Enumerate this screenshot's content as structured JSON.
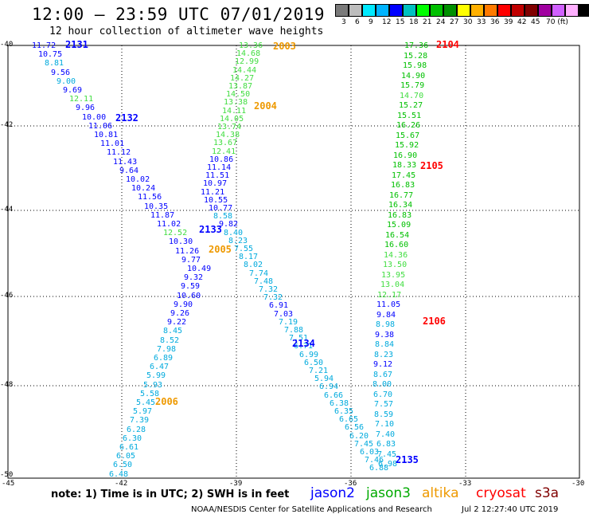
{
  "title": "12:00 – 23:59 UTC 07/01/2019",
  "subtitle": "12 hour collection of altimeter wave heights",
  "colorbar": {
    "colors": [
      "#7a7a7a",
      "#bdbdbd",
      "#00eaff",
      "#00b4ff",
      "#0000ff",
      "#00c0c0",
      "#00ff00",
      "#00c000",
      "#009000",
      "#ffff00",
      "#ffb000",
      "#ff7a00",
      "#ff0000",
      "#c00000",
      "#800000",
      "#a000a0",
      "#d060ff",
      "#ffb0ff",
      "#000000"
    ],
    "labels": [
      "3",
      "6",
      "9",
      "12",
      "15",
      "18",
      "21",
      "24",
      "27",
      "30",
      "33",
      "36",
      "39",
      "42",
      "45",
      "70 (ft)"
    ]
  },
  "axes": {
    "lat_labels": [
      "-40",
      "-42",
      "-44",
      "-46",
      "-48",
      "-50"
    ],
    "lon_labels": [
      "-45",
      "-42",
      "-39",
      "-36",
      "-33",
      "-30"
    ]
  },
  "tracks": [
    {
      "sat": "jason2",
      "pass": "2131",
      "color": "#0000ff",
      "label_color": "#0000ff",
      "points": [
        [
          0,
          "11.72",
          "#0000ff"
        ],
        [
          1,
          "10.75",
          "#0000ff"
        ],
        [
          2,
          "8.81",
          "#00aadd"
        ],
        [
          3,
          "9.56",
          "#0000ff"
        ],
        [
          4,
          "9.00",
          "#00aadd"
        ],
        [
          5,
          "9.69",
          "#0000ff"
        ],
        [
          6,
          "12.11",
          "#40dd40"
        ],
        [
          7,
          "9.96",
          "#0000ff"
        ],
        [
          8,
          "10.00",
          "#0000ff"
        ],
        [
          9,
          "11.06",
          "#0000ff"
        ],
        [
          10,
          "10.81",
          "#0000ff"
        ],
        [
          11,
          "11.01",
          "#0000ff"
        ],
        [
          12,
          "11.12",
          "#0000ff"
        ],
        [
          13,
          "11.43",
          "#0000ff"
        ],
        [
          14,
          "9.64",
          "#0000ff"
        ],
        [
          15,
          "10.02",
          "#0000ff"
        ],
        [
          16,
          "10.24",
          "#0000ff"
        ],
        [
          17,
          "11.56",
          "#0000ff"
        ],
        [
          18,
          "10.35",
          "#0000ff"
        ],
        [
          19,
          "11.87",
          "#0000ff"
        ],
        [
          20,
          "11.02",
          "#0000ff"
        ],
        [
          21,
          "12.52",
          "#40dd40"
        ],
        [
          22,
          "10.30",
          "#0000ff"
        ],
        [
          23,
          "11.26",
          "#0000ff"
        ],
        [
          24,
          "9.77",
          "#0000ff"
        ],
        [
          25,
          "10.49",
          "#0000ff"
        ],
        [
          26,
          "9.32",
          "#0000ff"
        ],
        [
          27,
          "9.59",
          "#0000ff"
        ],
        [
          28,
          "10.60",
          "#0000ff"
        ],
        [
          29,
          "9.90",
          "#0000ff"
        ],
        [
          30,
          "9.26",
          "#0000ff"
        ],
        [
          31,
          "9.22",
          "#0000ff"
        ]
      ]
    },
    {
      "sat": "jason2",
      "pass": "2132",
      "color": "#0000ff"
    },
    {
      "sat": "jason2",
      "pass": "2133",
      "color": "#0000ff"
    },
    {
      "sat": "jason2",
      "pass": "2134",
      "color": "#0000ff"
    },
    {
      "sat": "jason2",
      "pass": "2135",
      "color": "#0000ff"
    },
    {
      "sat": "altika",
      "pass": "2003",
      "color": "#ee9900"
    },
    {
      "sat": "altika",
      "pass": "2004",
      "color": "#ee9900"
    },
    {
      "sat": "altika",
      "pass": "2005",
      "color": "#ee9900"
    },
    {
      "sat": "altika",
      "pass": "2006",
      "color": "#ee9900"
    },
    {
      "sat": "cryosat",
      "pass": "2104",
      "color": "#ff0000"
    },
    {
      "sat": "cryosat",
      "pass": "2105",
      "color": "#ff0000"
    },
    {
      "sat": "cryosat",
      "pass": "2106",
      "color": "#ff0000"
    }
  ],
  "labels": {
    "trackA": [
      "11.72",
      "10.75",
      "8.81",
      "9.56",
      "9.00",
      "9.69",
      "12.11",
      "9.96",
      "10.00",
      "11.06",
      "10.81",
      "11.01",
      "11.12",
      "11.43",
      "9.64",
      "10.02",
      "10.24",
      "11.56",
      "10.35",
      "11.87",
      "11.02",
      "12.52",
      "10.30",
      "11.26",
      "9.77",
      "10.49",
      "9.32",
      "9.59",
      "10.60",
      "9.90",
      "9.26",
      "9.22",
      "8.45",
      "8.52",
      "7.98",
      "6.89",
      "6.47",
      "5.99",
      "5.93",
      "5.58",
      "5.45",
      "5.97",
      "7.39",
      "6.28",
      "6.30",
      "6.61",
      "6.05",
      "6.50",
      "6.48"
    ],
    "trackA_colors": [
      "#0000ff",
      "#0000ff",
      "#00aadd",
      "#0000ff",
      "#00aadd",
      "#0000ff",
      "#40dd40",
      "#0000ff",
      "#0000ff",
      "#0000ff",
      "#0000ff",
      "#0000ff",
      "#0000ff",
      "#0000ff",
      "#0000ff",
      "#0000ff",
      "#0000ff",
      "#0000ff",
      "#0000ff",
      "#0000ff",
      "#0000ff",
      "#40dd40",
      "#0000ff",
      "#0000ff",
      "#0000ff",
      "#0000ff",
      "#0000ff",
      "#0000ff",
      "#0000ff",
      "#0000ff",
      "#0000ff",
      "#0000ff",
      "#00aadd",
      "#00aadd",
      "#00aadd",
      "#00aadd",
      "#00aadd",
      "#00aadd",
      "#00aadd",
      "#00aadd",
      "#00aadd",
      "#00aadd",
      "#00aadd",
      "#00aadd",
      "#00aadd",
      "#00aadd",
      "#00aadd",
      "#00aadd",
      "#00aadd"
    ],
    "trackB": [
      "13.36",
      "14.68",
      "12.99",
      "14.44",
      "14.27",
      "13.87",
      "14.50",
      "13.38",
      "14.11",
      "14.05",
      "13.74",
      "14.38",
      "13.67",
      "12.41",
      "10.86",
      "11.14",
      "11.51",
      "10.97",
      "11.21",
      "10.55",
      "10.77",
      "8.58",
      "9.82",
      "8.40",
      "8.23",
      "7.55",
      "8.17",
      "8.02",
      "7.74",
      "7.48",
      "7.32",
      "7.32",
      "6.91",
      "7.03",
      "7.19",
      "7.88",
      "7.51",
      "6.71",
      "6.99",
      "6.50",
      "7.21",
      "5.94",
      "6.94",
      "6.66",
      "6.38",
      "6.35",
      "6.65",
      "6.56",
      "6.20",
      "7.45",
      "6.03",
      "7.46",
      "6.88"
    ],
    "trackB_colors": [
      "#40dd40",
      "#40dd40",
      "#40dd40",
      "#40dd40",
      "#40dd40",
      "#40dd40",
      "#40dd40",
      "#40dd40",
      "#40dd40",
      "#40dd40",
      "#40dd40",
      "#40dd40",
      "#40dd40",
      "#40dd40",
      "#0000ff",
      "#0000ff",
      "#0000ff",
      "#0000ff",
      "#0000ff",
      "#0000ff",
      "#0000ff",
      "#00aadd",
      "#0000ff",
      "#00aadd",
      "#00aadd",
      "#00aadd",
      "#00aadd",
      "#00aadd",
      "#00aadd",
      "#00aadd",
      "#00aadd",
      "#00aadd",
      "#0000ff",
      "#0000ff",
      "#00aadd",
      "#00aadd",
      "#00aadd",
      "#00aadd",
      "#00aadd",
      "#00aadd",
      "#00aadd",
      "#00aadd",
      "#00aadd",
      "#00aadd",
      "#00aadd",
      "#00aadd",
      "#00aadd",
      "#00aadd",
      "#00aadd",
      "#00aadd",
      "#00aadd",
      "#00aadd",
      "#00aadd"
    ],
    "trackC": [
      "17.36",
      "15.28",
      "15.98",
      "14.90",
      "15.79",
      "14.70",
      "15.27",
      "15.51",
      "16.26",
      "15.67",
      "15.92",
      "16.90",
      "18.33",
      "17.45",
      "16.83",
      "16.77",
      "16.34",
      "16.83",
      "15.09",
      "16.54",
      "16.60",
      "14.36",
      "13.50",
      "13.95",
      "13.04",
      "12.17",
      "11.05",
      "9.84",
      "8.98",
      "9.38",
      "8.84",
      "8.23",
      "9.12",
      "8.67",
      "8.00",
      "6.70",
      "7.57",
      "8.59",
      "7.10",
      "7.40",
      "6.83",
      "7.45",
      "6.98"
    ],
    "trackC_colors": [
      "#00c000",
      "#00c000",
      "#00c000",
      "#00c000",
      "#00c000",
      "#40dd40",
      "#00c000",
      "#00c000",
      "#00c000",
      "#00c000",
      "#00c000",
      "#00c000",
      "#00c000",
      "#00c000",
      "#00c000",
      "#00c000",
      "#00c000",
      "#00c000",
      "#00c000",
      "#00c000",
      "#00c000",
      "#40dd40",
      "#40dd40",
      "#40dd40",
      "#40dd40",
      "#40dd40",
      "#0000ff",
      "#0000ff",
      "#00aadd",
      "#0000ff",
      "#00aadd",
      "#00aadd",
      "#0000ff",
      "#00aadd",
      "#00aadd",
      "#00aadd",
      "#00aadd",
      "#00aadd",
      "#00aadd",
      "#00aadd",
      "#00aadd",
      "#00aadd",
      "#00aadd"
    ]
  },
  "passes": [
    {
      "id": "2131",
      "color": "#0000ff"
    },
    {
      "id": "2132",
      "color": "#0000ff"
    },
    {
      "id": "2133",
      "color": "#0000ff"
    },
    {
      "id": "2134",
      "color": "#0000ff"
    },
    {
      "id": "2135",
      "color": "#0000ff"
    },
    {
      "id": "2003",
      "color": "#ee9900"
    },
    {
      "id": "2004",
      "color": "#ee9900"
    },
    {
      "id": "2005",
      "color": "#ee9900"
    },
    {
      "id": "2006",
      "color": "#ee9900"
    },
    {
      "id": "2104",
      "color": "#ff0000"
    },
    {
      "id": "2105",
      "color": "#ff0000"
    },
    {
      "id": "2106",
      "color": "#ff0000"
    }
  ],
  "note": "note: 1) Time is in UTC; 2) SWH is in feet",
  "satellites": [
    {
      "name": "jason2",
      "color": "#0000ff"
    },
    {
      "name": "jason3",
      "color": "#00aa00"
    },
    {
      "name": "altika",
      "color": "#ee9900"
    },
    {
      "name": "cryosat",
      "color": "#ff0000"
    },
    {
      "name": "s3a",
      "color": "#800000"
    }
  ],
  "footer": "NOAA/NESDIS Center for Satellite Applications and Research",
  "timestamp": "Jul  2 12:27:40 UTC 2019"
}
